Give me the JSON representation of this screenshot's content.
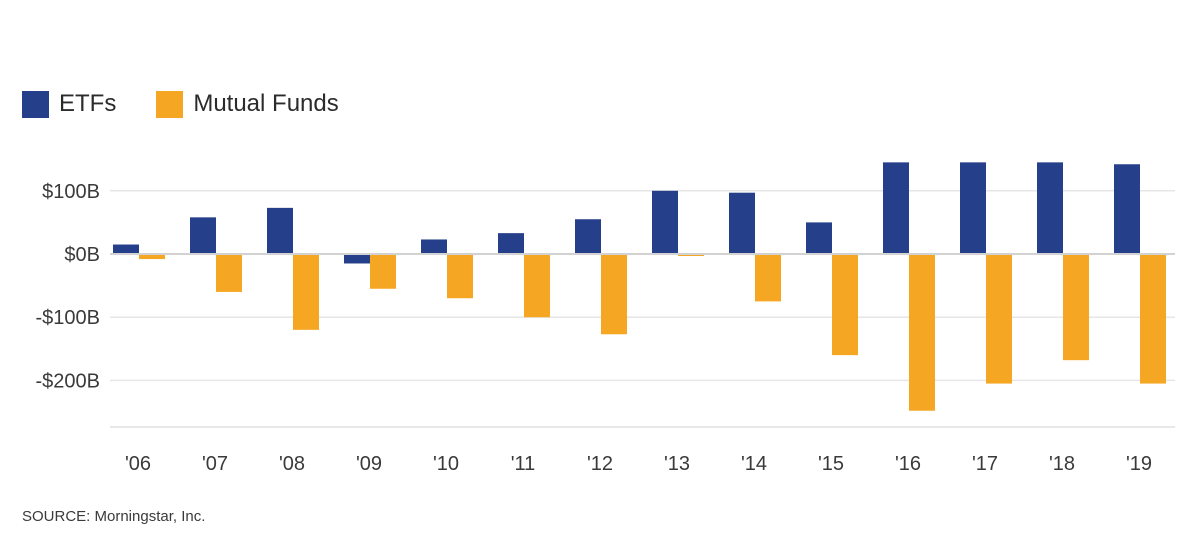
{
  "chart_data": {
    "type": "bar",
    "title": "",
    "xlabel": "",
    "ylabel": "",
    "categories": [
      "'06",
      "'07",
      "'08",
      "'09",
      "'10",
      "'11",
      "'12",
      "'13",
      "'14",
      "'15",
      "'16",
      "'17",
      "'18",
      "'19"
    ],
    "series": [
      {
        "name": "ETFs",
        "color": "#253f8a",
        "values": [
          15,
          58,
          73,
          -15,
          23,
          33,
          55,
          100,
          97,
          50,
          145,
          145,
          145,
          142
        ]
      },
      {
        "name": "Mutual Funds",
        "color": "#f5a623",
        "values": [
          -8,
          -60,
          -120,
          -55,
          -70,
          -100,
          -127,
          -2,
          -75,
          -160,
          -248,
          -205,
          -168,
          -205
        ]
      }
    ],
    "ylim": [
      -270,
      160
    ],
    "yticks": [
      {
        "value": 100,
        "label": "$100B"
      },
      {
        "value": 0,
        "label": "$0B"
      },
      {
        "value": -100,
        "label": "-$100B"
      },
      {
        "value": -200,
        "label": "-$200B"
      }
    ],
    "grid": true,
    "legend_position": "top-left"
  },
  "source": "SOURCE: Morningstar, Inc."
}
